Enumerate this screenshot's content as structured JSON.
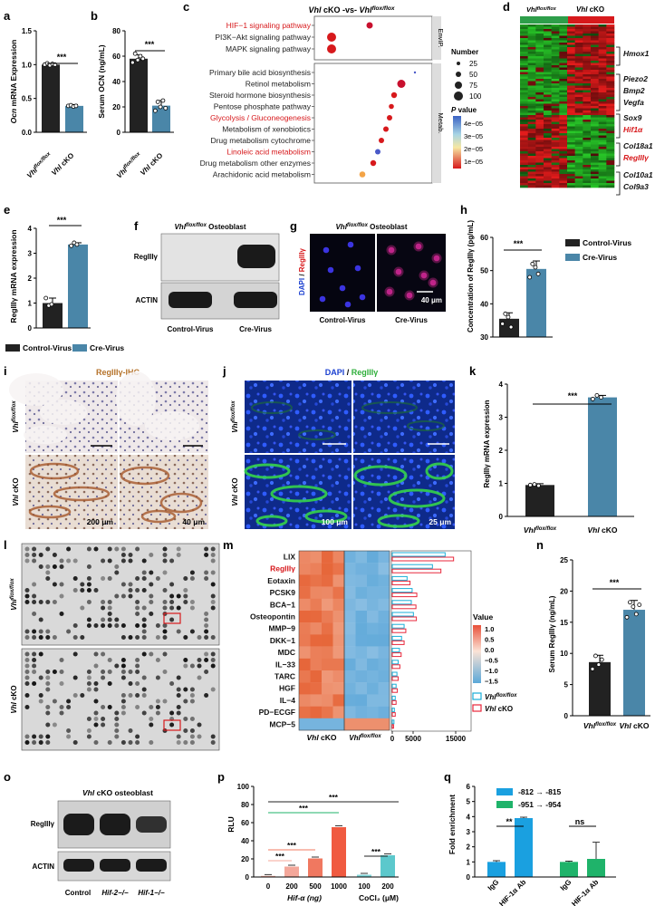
{
  "panels": {
    "a": {
      "label": "a",
      "ylabel_gene": "Ocn",
      "ylabel_rest": " mRNA Expression",
      "yticks": [
        "0.0",
        "0.5",
        "1.0",
        "1.5"
      ],
      "ylim": [
        0,
        1.5
      ],
      "sig": "***",
      "groups": [
        "Vhl flox/flox",
        "Vhl cKO"
      ],
      "values": [
        1.0,
        0.39
      ]
    },
    "b": {
      "label": "b",
      "ylabel": "Serum OCN (ng/mL)",
      "yticks": [
        "0",
        "20",
        "40",
        "60",
        "80"
      ],
      "ylim": [
        0,
        80
      ],
      "sig": "***",
      "groups": [
        "Vhl flox/flox",
        "Vhl cKO"
      ],
      "values": [
        58,
        21
      ]
    },
    "c": {
      "label": "c",
      "title": "Vhl cKO -vs- Vhl flox/flox",
      "envip_label": "EnvIP.",
      "metab_label": "Metab.",
      "envip_terms": [
        "HIF−1 signaling pathway",
        "PI3K−Akt signaling pathway",
        "MAPK signaling pathway"
      ],
      "metab_terms": [
        "Primary bile acid biosynthesis",
        "Retinol metabolism",
        "Steroid hormone biosynthesis",
        "Pentose phosphate pathway",
        "Glycolysis / Gluconeogenesis",
        "Metabolism of xenobiotics",
        "Drug metabolism cytochrome",
        "Linoleic acid metabolism",
        "Drug metabolism other enzymes",
        "Arachidonic acid metabolism"
      ],
      "highlight_color": "#d7191c",
      "legend_number_title": "Number",
      "legend_numbers": [
        "25",
        "50",
        "75",
        "100"
      ],
      "legend_p_title": "P value",
      "legend_p_ticks": [
        "4e−05",
        "3e−05",
        "2e−05",
        "1e−05"
      ]
    },
    "d": {
      "label": "d",
      "groups": [
        "Vhl flox/flox",
        "Vhl cKO"
      ],
      "group_colors": [
        "#2e9e4a",
        "#d7191c"
      ],
      "genes_black": [
        "Hmox1",
        "Piezo2",
        "Bmp2",
        "Vegfa",
        "Sox9",
        "Col18a1",
        "Col10a1",
        "Col9a3"
      ],
      "genes_red": [
        "Hif1α",
        "RegIIIγ"
      ]
    },
    "e": {
      "label": "e",
      "ylabel": "RegIIIγ mRNA expression",
      "yticks": [
        "0",
        "1",
        "2",
        "3",
        "4"
      ],
      "ylim": [
        0,
        4
      ],
      "sig": "***",
      "values": [
        1.0,
        3.35
      ],
      "legend": [
        "Control-Virus",
        "Cre-Virus"
      ],
      "colors": [
        "#222222",
        "#4a86a8"
      ]
    },
    "f": {
      "label": "f",
      "title": "Vhl flox/flox Osteoblast",
      "bands": [
        "RegIIIγ",
        "ACTIN"
      ],
      "lanes": [
        "Control-Virus",
        "Cre-Virus"
      ]
    },
    "g": {
      "label": "g",
      "title": "Vhl flox/flox Osteoblast",
      "side_label_dapi": "DAPI",
      "side_label_reg": "RegIIIγ",
      "lanes": [
        "Control-Virus",
        "Cre-Virus"
      ],
      "scale": "40 μm"
    },
    "h": {
      "label": "h",
      "ylabel": "Concentration of RegIIIγ (pg/mL)",
      "yticks": [
        "30",
        "40",
        "50",
        "60"
      ],
      "ylim": [
        30,
        60
      ],
      "sig": "***",
      "values": [
        35.5,
        50.5
      ],
      "legend": [
        "Control-Virus",
        "Cre-Virus"
      ]
    },
    "i": {
      "label": "i",
      "title": "RegIIIγ-IHC",
      "rows": [
        "Vhl flox/flox",
        "Vhl cKO"
      ],
      "scales": [
        "200 μm",
        "40 μm"
      ]
    },
    "j": {
      "label": "j",
      "title_dapi": "DAPI",
      "title_reg": "RegIIIγ",
      "rows": [
        "Vhl flox/flox",
        "Vhl cKO"
      ],
      "scales": [
        "100 μm",
        "25 μm"
      ]
    },
    "k": {
      "label": "k",
      "ylabel": "RegIIIγ mRNA expression",
      "yticks": [
        "0",
        "1",
        "2",
        "3",
        "4"
      ],
      "ylim": [
        0,
        4
      ],
      "sig": "***",
      "groups": [
        "Vhl flox/flox",
        "Vhl cKO"
      ],
      "values": [
        0.95,
        3.6
      ]
    },
    "l": {
      "label": "l",
      "rows": [
        "Vhl flox/flox",
        "Vhl cKO"
      ]
    },
    "m": {
      "label": "m",
      "cytokines": [
        "LIX",
        "RegIIIγ",
        "Eotaxin",
        "PCSK9",
        "BCA−1",
        "Osteopontin",
        "MMP−9",
        "DKK−1",
        "MDC",
        "IL−33",
        "TARC",
        "HGF",
        "IL−4",
        "PD−ECGF",
        "MCP−5"
      ],
      "highlight": "RegIIIγ",
      "col_groups": [
        "Vhl cKO",
        "Vhl flox/flox"
      ],
      "value_title": "Value",
      "value_ticks": [
        "1.0",
        "0.5",
        "0.0",
        "−0.5",
        "−1.0",
        "−1.5"
      ],
      "bar_axis": [
        "0",
        "5000",
        "15000"
      ],
      "bar_values_flox": [
        12500,
        9500,
        3500,
        4700,
        4500,
        5000,
        2800,
        2200,
        1700,
        1400,
        1100,
        900,
        700,
        500,
        400
      ],
      "bar_values_cko": [
        14500,
        11500,
        4200,
        5800,
        5600,
        5700,
        3200,
        2800,
        2100,
        1800,
        1400,
        1200,
        900,
        700,
        300
      ],
      "legend": [
        "Vhl flox/flox",
        "Vhl cKO"
      ]
    },
    "n": {
      "label": "n",
      "ylabel": "Serum RegIIIγ (ng/mL)",
      "yticks": [
        "0",
        "5",
        "10",
        "15",
        "20",
        "25"
      ],
      "ylim": [
        0,
        25
      ],
      "sig": "***",
      "groups": [
        "Vhl flox/flox",
        "Vhl cKO"
      ],
      "values": [
        8.6,
        17.0
      ]
    },
    "o": {
      "label": "o",
      "title": "Vhl cKO osteoblast",
      "bands": [
        "RegIIIγ",
        "ACTIN"
      ],
      "lanes": [
        "Control",
        "Hif-2−/−",
        "Hif-1−/−"
      ]
    },
    "p": {
      "label": "p",
      "ylabel": "RLU",
      "yticks": [
        "0",
        "20",
        "40",
        "60",
        "80",
        "100"
      ],
      "ylim": [
        0,
        100
      ],
      "categories": [
        "0",
        "200",
        "500",
        "1000",
        "100",
        "200"
      ],
      "values": [
        1.2,
        11.5,
        20.5,
        55.0,
        2.5,
        24.0
      ],
      "colors": [
        "#f4a79a",
        "#f4a79a",
        "#f07860",
        "#f05a40",
        "#7fd6d8",
        "#5cc8cc"
      ],
      "xgroup1": "Hif-α (ng)",
      "xgroup2": "CoCl₂ (μM)",
      "sig": "***"
    },
    "q": {
      "label": "q",
      "ylabel": "Fold enrichment",
      "yticks": [
        "0",
        "1",
        "2",
        "3",
        "4",
        "5",
        "6"
      ],
      "ylim": [
        0,
        6
      ],
      "legend": [
        "-812 → -815",
        "-951 → -954"
      ],
      "colors": [
        "#1aa0e0",
        "#1fb36a"
      ],
      "categories": [
        "IgG",
        "HIF-1α Ab",
        "IgG",
        "HIF-1α Ab"
      ],
      "values": [
        1.0,
        3.9,
        1.0,
        1.2
      ],
      "sig1": "**",
      "sig2": "ns"
    }
  }
}
